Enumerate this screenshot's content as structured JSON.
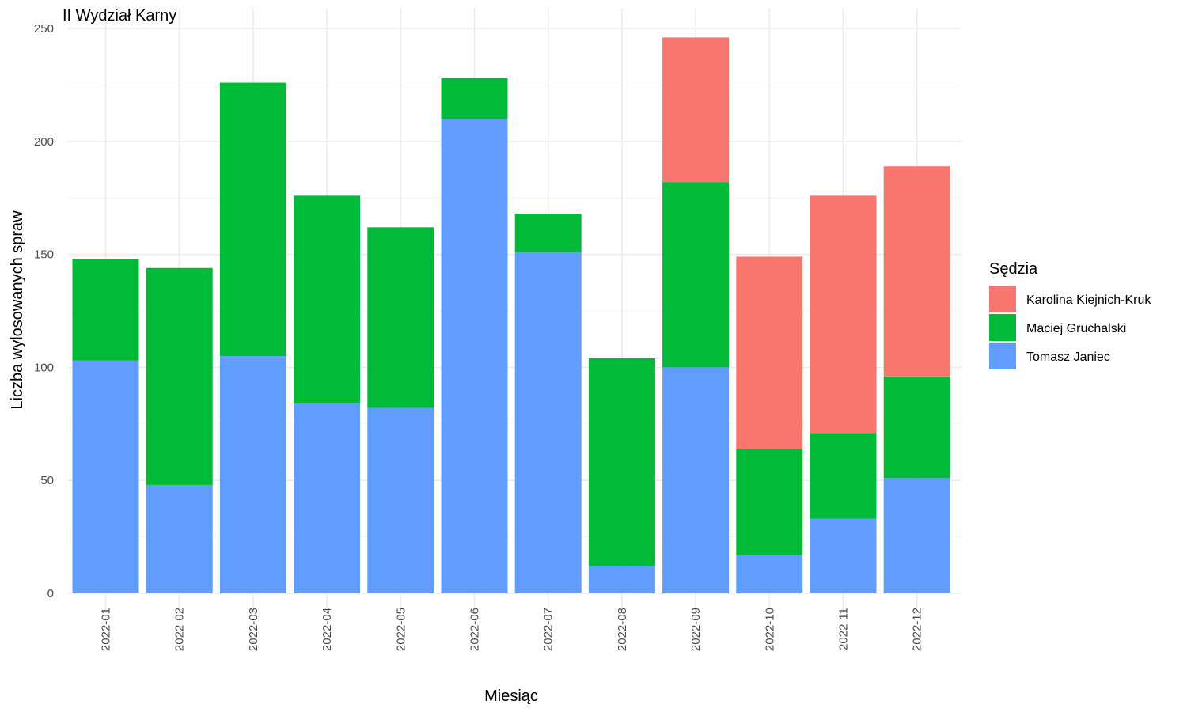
{
  "chart_data": {
    "type": "bar",
    "stacked": true,
    "title": "II Wydział Karny",
    "xlabel": "Miesiąc",
    "ylabel": "Liczba wylosowanych spraw",
    "ylim": [
      0,
      250
    ],
    "yticks": [
      0,
      50,
      100,
      150,
      200,
      250
    ],
    "grid": true,
    "legend_position": "right",
    "legend_title": "Sędzia",
    "categories": [
      "2022-01",
      "2022-02",
      "2022-03",
      "2022-04",
      "2022-05",
      "2022-06",
      "2022-07",
      "2022-08",
      "2022-09",
      "2022-10",
      "2022-11",
      "2022-12"
    ],
    "series": [
      {
        "name": "Tomasz Janiec",
        "color": "#619CFF",
        "values": [
          103,
          48,
          105,
          84,
          82,
          210,
          151,
          12,
          100,
          17,
          33,
          51
        ]
      },
      {
        "name": "Maciej Gruchalski",
        "color": "#00BA38",
        "values": [
          45,
          96,
          121,
          92,
          80,
          18,
          17,
          92,
          82,
          47,
          38,
          45
        ]
      },
      {
        "name": "Karolina Kiejnich-Kruk",
        "color": "#F8766D",
        "values": [
          0,
          0,
          0,
          0,
          0,
          0,
          0,
          0,
          64,
          85,
          105,
          93
        ]
      }
    ],
    "legend_order": [
      "Karolina Kiejnich-Kruk",
      "Maciej Gruchalski",
      "Tomasz Janiec"
    ]
  }
}
